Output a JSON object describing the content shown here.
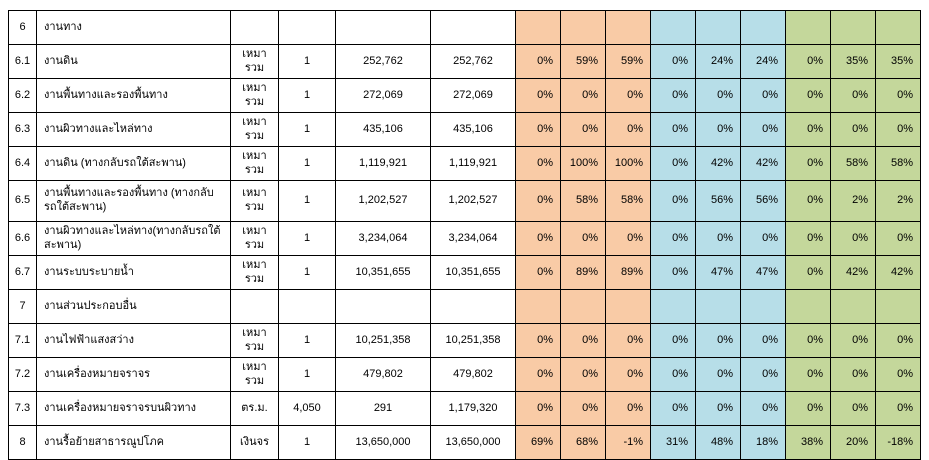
{
  "colors": {
    "progress_group1_orange": "#F9CBA6",
    "progress_group2_blue": "#B7DEE8",
    "progress_group3_green": "#C4D79B",
    "grid_line": "#000000",
    "background": "#FFFFFF"
  },
  "table": {
    "rows": [
      {
        "no": "6",
        "desc": "งานทาง",
        "unit": "",
        "qty": "",
        "price": "",
        "amount": "",
        "pct_orange": [
          "",
          "",
          ""
        ],
        "pct_blue": [
          "",
          "",
          ""
        ],
        "pct_green": [
          "",
          "",
          ""
        ],
        "tall": false
      },
      {
        "no": "6.1",
        "desc": "งานดิน",
        "unit": "เหมารวม",
        "qty": "1",
        "price": "252,762",
        "amount": "252,762",
        "pct_orange": [
          "0%",
          "59%",
          "59%"
        ],
        "pct_blue": [
          "0%",
          "24%",
          "24%"
        ],
        "pct_green": [
          "0%",
          "35%",
          "35%"
        ],
        "tall": false
      },
      {
        "no": "6.2",
        "desc": "งานพื้นทางและรองพื้นทาง",
        "unit": "เหมารวม",
        "qty": "1",
        "price": "272,069",
        "amount": "272,069",
        "pct_orange": [
          "0%",
          "0%",
          "0%"
        ],
        "pct_blue": [
          "0%",
          "0%",
          "0%"
        ],
        "pct_green": [
          "0%",
          "0%",
          "0%"
        ],
        "tall": false
      },
      {
        "no": "6.3",
        "desc": "งานผิวทางและไหล่ทาง",
        "unit": "เหมารวม",
        "qty": "1",
        "price": "435,106",
        "amount": "435,106",
        "pct_orange": [
          "0%",
          "0%",
          "0%"
        ],
        "pct_blue": [
          "0%",
          "0%",
          "0%"
        ],
        "pct_green": [
          "0%",
          "0%",
          "0%"
        ],
        "tall": false
      },
      {
        "no": "6.4",
        "desc": "งานดิน (ทางกลับรถใต้สะพาน)",
        "unit": "เหมารวม",
        "qty": "1",
        "price": "1,119,921",
        "amount": "1,119,921",
        "pct_orange": [
          "0%",
          "100%",
          "100%"
        ],
        "pct_blue": [
          "0%",
          "42%",
          "42%"
        ],
        "pct_green": [
          "0%",
          "58%",
          "58%"
        ],
        "tall": false
      },
      {
        "no": "6.5",
        "desc": "งานพื้นทางและรองพื้นทาง (ทางกลับรถใต้สะพาน)",
        "unit": "เหมารวม",
        "qty": "1",
        "price": "1,202,527",
        "amount": "1,202,527",
        "pct_orange": [
          "0%",
          "58%",
          "58%"
        ],
        "pct_blue": [
          "0%",
          "56%",
          "56%"
        ],
        "pct_green": [
          "0%",
          "2%",
          "2%"
        ],
        "tall": true
      },
      {
        "no": "6.6",
        "desc": "งานผิวทางและไหล่ทาง(ทางกลับรถใต้สะพาน)",
        "unit": "เหมารวม",
        "qty": "1",
        "price": "3,234,064",
        "amount": "3,234,064",
        "pct_orange": [
          "0%",
          "0%",
          "0%"
        ],
        "pct_blue": [
          "0%",
          "0%",
          "0%"
        ],
        "pct_green": [
          "0%",
          "0%",
          "0%"
        ],
        "tall": false
      },
      {
        "no": "6.7",
        "desc": "งานระบบระบายน้ำ",
        "unit": "เหมารวม",
        "qty": "1",
        "price": "10,351,655",
        "amount": "10,351,655",
        "pct_orange": [
          "0%",
          "89%",
          "89%"
        ],
        "pct_blue": [
          "0%",
          "47%",
          "47%"
        ],
        "pct_green": [
          "0%",
          "42%",
          "42%"
        ],
        "tall": false
      },
      {
        "no": "7",
        "desc": "งานส่วนประกอบอื่น",
        "unit": "",
        "qty": "",
        "price": "",
        "amount": "",
        "pct_orange": [
          "",
          "",
          ""
        ],
        "pct_blue": [
          "",
          "",
          ""
        ],
        "pct_green": [
          "",
          "",
          ""
        ],
        "tall": false
      },
      {
        "no": "7.1",
        "desc": "งานไฟฟ้าแสงสว่าง",
        "unit": "เหมารวม",
        "qty": "1",
        "price": "10,251,358",
        "amount": "10,251,358",
        "pct_orange": [
          "0%",
          "0%",
          "0%"
        ],
        "pct_blue": [
          "0%",
          "0%",
          "0%"
        ],
        "pct_green": [
          "0%",
          "0%",
          "0%"
        ],
        "tall": false
      },
      {
        "no": "7.2",
        "desc": "งานเครื่องหมายจราจร",
        "unit": "เหมารวม",
        "qty": "1",
        "price": "479,802",
        "amount": "479,802",
        "pct_orange": [
          "0%",
          "0%",
          "0%"
        ],
        "pct_blue": [
          "0%",
          "0%",
          "0%"
        ],
        "pct_green": [
          "0%",
          "0%",
          "0%"
        ],
        "tall": false
      },
      {
        "no": "7.3",
        "desc": "งานเครื่องหมายจราจรบนผิวทาง",
        "unit": "ตร.ม.",
        "qty": "4,050",
        "price": "291",
        "amount": "1,179,320",
        "pct_orange": [
          "0%",
          "0%",
          "0%"
        ],
        "pct_blue": [
          "0%",
          "0%",
          "0%"
        ],
        "pct_green": [
          "0%",
          "0%",
          "0%"
        ],
        "tall": false
      },
      {
        "no": "8",
        "desc": "งานรื้อย้ายสาธารณูปโภค",
        "unit": "เงินจร",
        "qty": "1",
        "price": "13,650,000",
        "amount": "13,650,000",
        "pct_orange": [
          "69%",
          "68%",
          "-1%"
        ],
        "pct_blue": [
          "31%",
          "48%",
          "18%"
        ],
        "pct_green": [
          "38%",
          "20%",
          "-18%"
        ],
        "tall": false
      }
    ]
  }
}
